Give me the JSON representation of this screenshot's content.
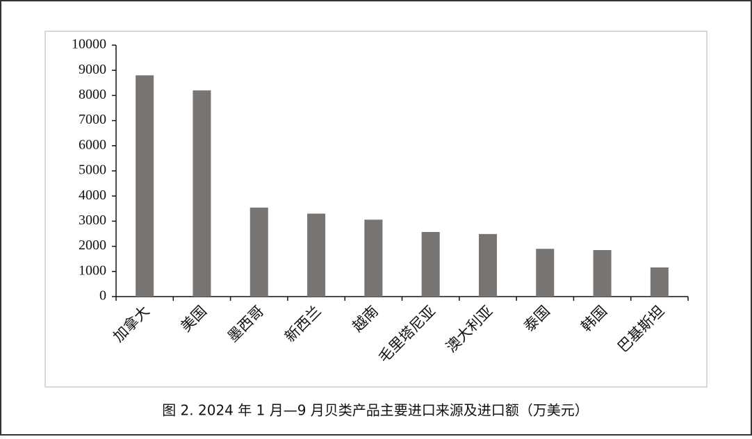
{
  "chart_data": {
    "type": "bar",
    "title": "图 2. 2024 年 1 月—9 月贝类产品主要进口来源及进口额（万美元）",
    "categories": [
      "加拿大",
      "美国",
      "墨西哥",
      "新西兰",
      "越南",
      "毛里塔尼亚",
      "澳大利亚",
      "泰国",
      "韩国",
      "巴基斯坦"
    ],
    "values": [
      8800,
      8200,
      3540,
      3300,
      3060,
      2570,
      2490,
      1900,
      1850,
      1160
    ],
    "color": "#777472",
    "ylim": [
      0,
      10000
    ],
    "yticks": [
      0,
      1000,
      2000,
      3000,
      4000,
      5000,
      6000,
      7000,
      8000,
      9000,
      10000
    ],
    "grid": false
  }
}
